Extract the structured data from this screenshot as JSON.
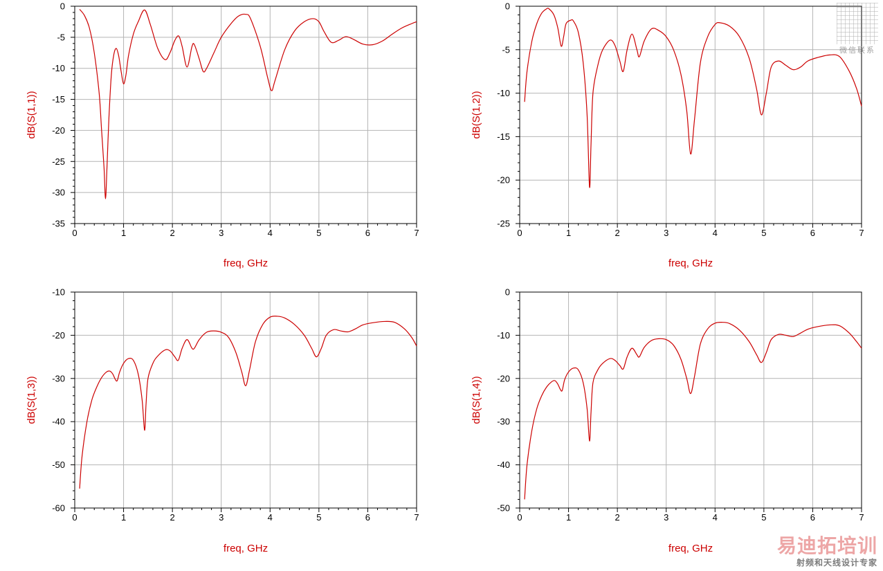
{
  "colors": {
    "trace": "#cc0000",
    "label": "#cc0000",
    "grid": "#b4b4b4"
  },
  "watermark": {
    "main": "易迪拓培训",
    "sub": "射频和天线设计专家",
    "qr_caption": "微信联系"
  },
  "chart_data": [
    {
      "type": "line",
      "title": "",
      "xlabel": "freq, GHz",
      "ylabel": "dB(S(1,1))",
      "xlim": [
        0,
        7
      ],
      "ylim": [
        -35,
        0
      ],
      "xticks": [
        "0",
        "1",
        "2",
        "3",
        "4",
        "5",
        "6",
        "7"
      ],
      "yticks": [
        "0",
        "-5",
        "-10",
        "-15",
        "-20",
        "-25",
        "-30",
        "-35"
      ],
      "series": [
        {
          "x": [
            0.1,
            0.2,
            0.3,
            0.4,
            0.5,
            0.55,
            0.6,
            0.63,
            0.66,
            0.7,
            0.75,
            0.8,
            0.85,
            0.9,
            0.95,
            1.0,
            1.05,
            1.1,
            1.2,
            1.3,
            1.43,
            1.55,
            1.7,
            1.85,
            1.95,
            2.05,
            2.13,
            2.2,
            2.3,
            2.4,
            2.45,
            2.55,
            2.63,
            2.7,
            2.85,
            3.0,
            3.2,
            3.35,
            3.5,
            3.6,
            3.8,
            3.95,
            4.03,
            4.1,
            4.3,
            4.5,
            4.7,
            4.88,
            5.0,
            5.1,
            5.25,
            5.4,
            5.55,
            5.7,
            5.9,
            6.1,
            6.3,
            6.5,
            6.7,
            6.9,
            7.0
          ],
          "y": [
            -0.5,
            -1.5,
            -3.5,
            -7.5,
            -14,
            -20,
            -26,
            -31,
            -26,
            -18,
            -11,
            -7.8,
            -6.8,
            -8,
            -10.5,
            -12.5,
            -11,
            -8,
            -4.5,
            -2.5,
            -0.6,
            -3,
            -6.8,
            -8.6,
            -7.5,
            -5.5,
            -4.8,
            -6.5,
            -9.8,
            -6.5,
            -6.2,
            -8.5,
            -10.5,
            -10,
            -7.5,
            -5,
            -2.8,
            -1.6,
            -1.3,
            -2,
            -6.5,
            -11.5,
            -13.6,
            -12,
            -7,
            -4,
            -2.5,
            -2,
            -2.5,
            -4,
            -5.8,
            -5.5,
            -4.9,
            -5.3,
            -6.1,
            -6.2,
            -5.6,
            -4.5,
            -3.5,
            -2.8,
            -2.5
          ]
        }
      ]
    },
    {
      "type": "line",
      "title": "",
      "xlabel": "freq, GHz",
      "ylabel": "dB(S(1,2))",
      "xlim": [
        0,
        7
      ],
      "ylim": [
        -25,
        0
      ],
      "xticks": [
        "0",
        "1",
        "2",
        "3",
        "4",
        "5",
        "6",
        "7"
      ],
      "yticks": [
        "0",
        "-5",
        "-10",
        "-15",
        "-20",
        "-25"
      ],
      "series": [
        {
          "x": [
            0.1,
            0.15,
            0.25,
            0.35,
            0.45,
            0.55,
            0.6,
            0.7,
            0.78,
            0.85,
            0.9,
            0.95,
            1.05,
            1.1,
            1.2,
            1.3,
            1.38,
            1.43,
            1.46,
            1.5,
            1.6,
            1.7,
            1.85,
            1.95,
            2.05,
            2.12,
            2.2,
            2.3,
            2.4,
            2.45,
            2.55,
            2.7,
            2.85,
            3.0,
            3.15,
            3.3,
            3.42,
            3.5,
            3.58,
            3.7,
            3.85,
            4.0,
            4.1,
            4.3,
            4.5,
            4.7,
            4.85,
            4.95,
            5.05,
            5.15,
            5.3,
            5.45,
            5.6,
            5.75,
            5.9,
            6.1,
            6.35,
            6.55,
            6.75,
            6.9,
            7.0
          ],
          "y": [
            -11,
            -7.5,
            -4,
            -2,
            -0.8,
            -0.3,
            -0.3,
            -1,
            -2.5,
            -4.6,
            -3.5,
            -2,
            -1.6,
            -1.7,
            -3,
            -6.5,
            -12.5,
            -20.8,
            -16,
            -10,
            -6.8,
            -5,
            -3.9,
            -4.5,
            -6.3,
            -7.5,
            -5,
            -3.2,
            -5,
            -5.8,
            -4,
            -2.6,
            -2.8,
            -3.5,
            -5,
            -7.8,
            -12,
            -17,
            -13,
            -6.5,
            -3.5,
            -2.1,
            -1.9,
            -2.3,
            -3.5,
            -6,
            -9.5,
            -12.5,
            -10,
            -7,
            -6.3,
            -6.8,
            -7.3,
            -7,
            -6.3,
            -5.9,
            -5.6,
            -5.8,
            -7.5,
            -9.5,
            -11.5
          ]
        }
      ]
    },
    {
      "type": "line",
      "title": "",
      "xlabel": "freq, GHz",
      "ylabel": "dB(S(1,3))",
      "xlim": [
        0,
        7
      ],
      "ylim": [
        -60,
        -10
      ],
      "xticks": [
        "0",
        "1",
        "2",
        "3",
        "4",
        "5",
        "6",
        "7"
      ],
      "yticks": [
        "-10",
        "-20",
        "-30",
        "-40",
        "-50",
        "-60"
      ],
      "series": [
        {
          "x": [
            0.1,
            0.15,
            0.25,
            0.35,
            0.45,
            0.55,
            0.65,
            0.72,
            0.78,
            0.83,
            0.87,
            0.92,
            1.0,
            1.1,
            1.2,
            1.3,
            1.38,
            1.43,
            1.46,
            1.5,
            1.6,
            1.7,
            1.85,
            1.95,
            2.05,
            2.12,
            2.2,
            2.3,
            2.4,
            2.45,
            2.55,
            2.7,
            2.85,
            3.0,
            3.15,
            3.3,
            3.42,
            3.5,
            3.58,
            3.7,
            3.85,
            4.0,
            4.15,
            4.3,
            4.5,
            4.7,
            4.85,
            4.95,
            5.05,
            5.15,
            5.3,
            5.45,
            5.6,
            5.75,
            5.9,
            6.1,
            6.35,
            6.55,
            6.75,
            6.9,
            7.0
          ],
          "y": [
            -55.5,
            -48,
            -40,
            -35,
            -32,
            -29.8,
            -28.5,
            -28.3,
            -29,
            -30.2,
            -30.5,
            -28.5,
            -26.5,
            -25.4,
            -25.8,
            -29,
            -35,
            -42,
            -36,
            -30,
            -26.5,
            -24.8,
            -23.4,
            -23.6,
            -25,
            -25.8,
            -23,
            -21,
            -23,
            -23,
            -21,
            -19.3,
            -19,
            -19.3,
            -20.5,
            -24,
            -28.5,
            -31.7,
            -28,
            -21.5,
            -17.5,
            -15.8,
            -15.6,
            -16,
            -17.5,
            -20,
            -23,
            -25,
            -23,
            -20,
            -18.7,
            -19,
            -19.2,
            -18.5,
            -17.6,
            -17.1,
            -16.8,
            -17,
            -18.5,
            -20.5,
            -22.5
          ]
        }
      ]
    },
    {
      "type": "line",
      "title": "",
      "xlabel": "freq, GHz",
      "ylabel": "dB(S(1,4))",
      "xlim": [
        0,
        7
      ],
      "ylim": [
        -50,
        0
      ],
      "xticks": [
        "0",
        "1",
        "2",
        "3",
        "4",
        "5",
        "6",
        "7"
      ],
      "yticks": [
        "0",
        "-10",
        "-20",
        "-30",
        "-40",
        "-50"
      ],
      "series": [
        {
          "x": [
            0.1,
            0.15,
            0.25,
            0.35,
            0.45,
            0.55,
            0.65,
            0.72,
            0.78,
            0.83,
            0.87,
            0.92,
            1.0,
            1.1,
            1.2,
            1.3,
            1.38,
            1.43,
            1.46,
            1.5,
            1.6,
            1.7,
            1.85,
            1.95,
            2.05,
            2.12,
            2.2,
            2.3,
            2.4,
            2.45,
            2.55,
            2.7,
            2.85,
            3.0,
            3.15,
            3.3,
            3.42,
            3.5,
            3.58,
            3.7,
            3.85,
            4.0,
            4.15,
            4.3,
            4.5,
            4.7,
            4.85,
            4.95,
            5.05,
            5.15,
            5.3,
            5.45,
            5.6,
            5.75,
            5.9,
            6.1,
            6.35,
            6.55,
            6.75,
            6.9,
            7.0
          ],
          "y": [
            -48,
            -40,
            -32,
            -27,
            -24,
            -22,
            -20.8,
            -20.5,
            -21.3,
            -22.5,
            -22.8,
            -20.3,
            -18.5,
            -17.6,
            -18,
            -21,
            -27,
            -34.5,
            -28,
            -21,
            -18,
            -16.5,
            -15.4,
            -15.8,
            -17,
            -17.8,
            -15,
            -13,
            -14.5,
            -15,
            -12.8,
            -11.2,
            -10.8,
            -11,
            -12.3,
            -15.5,
            -20,
            -23.5,
            -19.5,
            -12,
            -8.5,
            -7.2,
            -7,
            -7.3,
            -8.8,
            -11.5,
            -14.5,
            -16.3,
            -14,
            -11,
            -9.8,
            -10,
            -10.3,
            -9.5,
            -8.6,
            -8,
            -7.6,
            -7.8,
            -9.5,
            -11.5,
            -13
          ]
        }
      ]
    }
  ]
}
